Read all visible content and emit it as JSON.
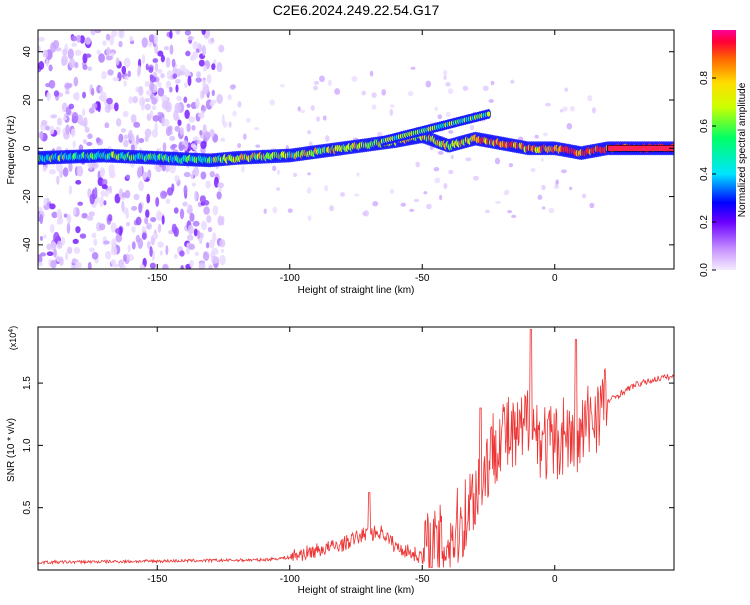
{
  "title": "C2E6.2024.249.22.54.G17",
  "chart_data": [
    {
      "type": "heatmap",
      "xlabel": "Height of straight line (km)",
      "ylabel": "Frequency (Hz)",
      "xlim": [
        -195,
        45
      ],
      "ylim": [
        -50,
        49
      ],
      "x_ticks": [
        -150,
        -100,
        -50,
        0
      ],
      "y_ticks": [
        -40,
        -20,
        0,
        20,
        40
      ],
      "colorbar": {
        "label": "Normalized spectral amplitude",
        "range": [
          0.0,
          1.0
        ],
        "ticks": [
          0.0,
          0.2,
          0.4,
          0.6,
          0.8
        ]
      },
      "ridge": {
        "x": [
          -195,
          -170,
          -150,
          -130,
          -120,
          -100,
          -80,
          -60,
          -50,
          -40,
          -30,
          -25,
          -20,
          -10,
          0,
          10,
          20,
          45
        ],
        "y": [
          -4,
          -3,
          -4,
          -5,
          -4,
          -3,
          0,
          3,
          5,
          1,
          4,
          3,
          2,
          0,
          0,
          -2,
          0,
          0
        ]
      },
      "noise_region_x": [
        -195,
        -125
      ],
      "colors": {
        "low": "#e6d9fb",
        "mid": "#00d8ff",
        "high": "#ff1a1a"
      }
    },
    {
      "type": "line",
      "xlabel": "Height of straight line (km)",
      "ylabel": "SNR (10 * v/v)",
      "y_exponent": "(x10",
      "y_exponent_power": "4",
      "y_exponent_close": ")",
      "xlim": [
        -195,
        45
      ],
      "ylim": [
        0.0,
        1.95
      ],
      "x_ticks": [
        -150,
        -100,
        -50,
        0
      ],
      "y_ticks": [
        0.5,
        1.0,
        1.5
      ],
      "series": [
        {
          "color": "#ee3333",
          "x": [
            -195,
            -150,
            -110,
            -100,
            -90,
            -80,
            -72,
            -65,
            -60,
            -50,
            -45,
            -40,
            -35,
            -32,
            -28,
            -24,
            -20,
            -16,
            -12,
            -10,
            -8,
            -4,
            0,
            4,
            8,
            10,
            14,
            20,
            30,
            40,
            45
          ],
          "y": [
            0.06,
            0.07,
            0.08,
            0.1,
            0.15,
            0.2,
            0.28,
            0.3,
            0.18,
            0.1,
            0.14,
            0.2,
            0.35,
            0.5,
            0.7,
            0.9,
            1.1,
            1.0,
            1.05,
            1.2,
            1.1,
            1.0,
            0.95,
            1.1,
            0.9,
            1.05,
            1.2,
            1.35,
            1.48,
            1.54,
            1.55
          ]
        }
      ],
      "peaks": [
        {
          "x": -9,
          "y": 1.93
        },
        {
          "x": 8,
          "y": 1.85
        },
        {
          "x": -28,
          "y": 1.3
        },
        {
          "x": -70,
          "y": 0.62
        }
      ]
    }
  ]
}
